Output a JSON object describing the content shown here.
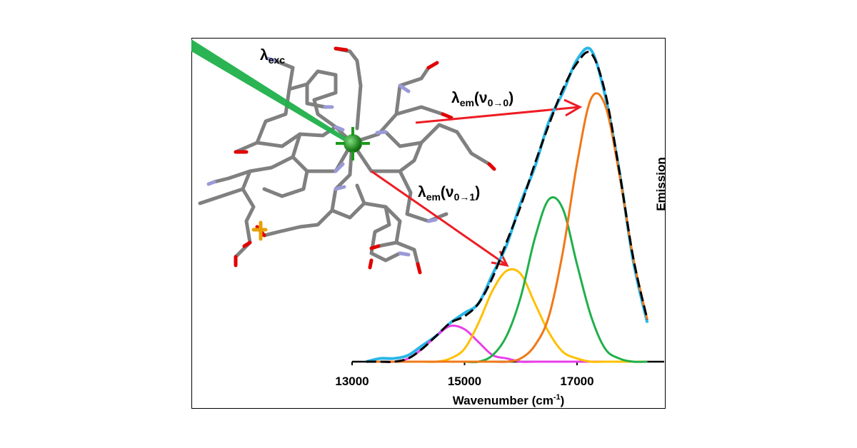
{
  "chart_data": {
    "type": "line",
    "x": [
      13250,
      13500,
      13750,
      14000,
      14250,
      14500,
      14750,
      15000,
      15250,
      15500,
      15750,
      16000,
      16250,
      16500,
      16750,
      17000,
      17250,
      17500,
      17750,
      18000,
      18250
    ],
    "series": [
      {
        "color": "#29b6e8",
        "values": [
          0,
          0.01,
          0.01,
          0.02,
          0.05,
          0.08,
          0.12,
          0.15,
          0.18,
          0.27,
          0.36,
          0.49,
          0.6,
          0.74,
          0.83,
          0.93,
          0.96,
          0.82,
          0.59,
          0.31,
          0.12
        ]
      },
      {
        "color": "#e83ee8",
        "values": [
          0,
          0,
          0,
          0.01,
          0.04,
          0.08,
          0.11,
          0.1,
          0.06,
          0.02,
          0.01,
          0,
          0,
          0,
          0,
          0,
          0,
          0,
          0,
          0,
          0
        ]
      },
      {
        "color": "#ffc000",
        "values": [
          0,
          0,
          0,
          0,
          0,
          0,
          0.01,
          0.04,
          0.12,
          0.22,
          0.28,
          0.27,
          0.18,
          0.09,
          0.03,
          0.01,
          0,
          0,
          0,
          0,
          0
        ]
      },
      {
        "color": "#1fb04a",
        "values": [
          0,
          0,
          0,
          0,
          0,
          0,
          0,
          0,
          0,
          0.02,
          0.08,
          0.2,
          0.38,
          0.5,
          0.47,
          0.3,
          0.14,
          0.04,
          0.01,
          0,
          0
        ]
      },
      {
        "color": "#f07818",
        "values": [
          0,
          0,
          0,
          0,
          0,
          0,
          0,
          0,
          0,
          0,
          0,
          0.01,
          0.05,
          0.14,
          0.34,
          0.61,
          0.81,
          0.79,
          0.58,
          0.32,
          0.13
        ]
      },
      {
        "color": "#000000",
        "dashed": true,
        "values": [
          0,
          0,
          0,
          0.01,
          0.04,
          0.08,
          0.12,
          0.14,
          0.18,
          0.26,
          0.37,
          0.48,
          0.61,
          0.73,
          0.84,
          0.92,
          0.95,
          0.83,
          0.59,
          0.32,
          0.13
        ]
      }
    ],
    "xlim": [
      13000,
      18550
    ],
    "xticks": [
      13000,
      15000,
      17000
    ],
    "ylim": [
      0,
      1
    ],
    "xlabel": {
      "text": "Wavenumber (cm",
      "sup": "-1",
      "end": ")"
    },
    "ylabel": "Emission",
    "annotations": [
      [
        "λ",
        "exc"
      ],
      [
        "λ",
        "em",
        "(ν",
        "0→0",
        ")"
      ],
      [
        "λ",
        "em",
        "(ν",
        "0→1",
        ")"
      ]
    ]
  }
}
